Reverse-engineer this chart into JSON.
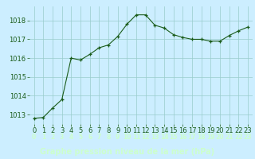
{
  "x": [
    0,
    1,
    2,
    3,
    4,
    5,
    6,
    7,
    8,
    9,
    10,
    11,
    12,
    13,
    14,
    15,
    16,
    17,
    18,
    19,
    20,
    21,
    22,
    23
  ],
  "y": [
    1012.8,
    1012.85,
    1013.35,
    1013.8,
    1016.0,
    1015.9,
    1016.2,
    1016.55,
    1016.7,
    1017.15,
    1017.8,
    1018.3,
    1018.3,
    1017.75,
    1017.6,
    1017.25,
    1017.1,
    1017.0,
    1017.0,
    1016.9,
    1016.9,
    1017.2,
    1017.45,
    1017.65
  ],
  "ylim": [
    1012.5,
    1018.75
  ],
  "yticks": [
    1013,
    1014,
    1015,
    1016,
    1017,
    1018
  ],
  "xticks": [
    0,
    1,
    2,
    3,
    4,
    5,
    6,
    7,
    8,
    9,
    10,
    11,
    12,
    13,
    14,
    15,
    16,
    17,
    18,
    19,
    20,
    21,
    22,
    23
  ],
  "xlabel": "Graphe pression niveau de la mer (hPa)",
  "line_color": "#1a5c1a",
  "marker": "+",
  "marker_size": 3,
  "bg_color": "#cceeff",
  "bottom_bar_color": "#2d6e2d",
  "grid_color": "#99cccc",
  "xlabel_fontsize": 7,
  "tick_fontsize": 6,
  "tick_color": "#1a5c1a",
  "xlabel_color": "#ccffcc",
  "xlabel_fontweight": "bold",
  "bottom_label_color": "#ccffcc"
}
